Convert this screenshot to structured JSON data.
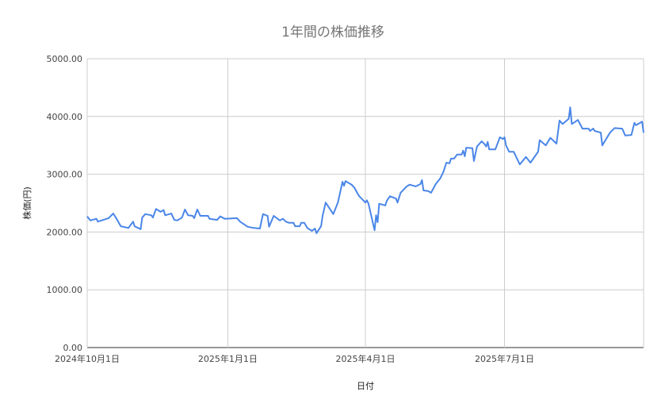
{
  "chart_data": {
    "type": "line",
    "title": "1年間の株価推移",
    "xlabel": "日付",
    "ylabel": "株価(円)",
    "xlim": [
      "2024-10-01",
      "2025-09-30"
    ],
    "ylim": [
      0,
      5000
    ],
    "y_ticks": [
      "0.00",
      "1000.00",
      "2000.00",
      "3000.00",
      "4000.00",
      "5000.00"
    ],
    "x_ticks": [
      {
        "date": "2024-10-01",
        "label": "2024年10月1日"
      },
      {
        "date": "2025-01-01",
        "label": "2025年1月1日"
      },
      {
        "date": "2025-04-01",
        "label": "2025年4月1日"
      },
      {
        "date": "2025-07-01",
        "label": "2025年7月1日"
      }
    ],
    "grid": true,
    "legend": "none",
    "line_color": "#4a86e8",
    "series": [
      {
        "points": [
          [
            "2024-10-01",
            2270
          ],
          [
            "2024-10-03",
            2200
          ],
          [
            "2024-10-07",
            2230
          ],
          [
            "2024-10-08",
            2180
          ],
          [
            "2024-10-15",
            2240
          ],
          [
            "2024-10-18",
            2320
          ],
          [
            "2024-10-20",
            2240
          ],
          [
            "2024-10-23",
            2100
          ],
          [
            "2024-10-28",
            2070
          ],
          [
            "2024-10-31",
            2180
          ],
          [
            "2024-11-01",
            2100
          ],
          [
            "2024-11-05",
            2050
          ],
          [
            "2024-11-06",
            2250
          ],
          [
            "2024-11-08",
            2310
          ],
          [
            "2024-11-12",
            2290
          ],
          [
            "2024-11-13",
            2250
          ],
          [
            "2024-11-15",
            2400
          ],
          [
            "2024-11-18",
            2350
          ],
          [
            "2024-11-20",
            2380
          ],
          [
            "2024-11-21",
            2290
          ],
          [
            "2024-11-25",
            2320
          ],
          [
            "2024-11-27",
            2210
          ],
          [
            "2024-11-29",
            2200
          ],
          [
            "2024-12-02",
            2250
          ],
          [
            "2024-12-04",
            2390
          ],
          [
            "2024-12-06",
            2290
          ],
          [
            "2024-12-09",
            2280
          ],
          [
            "2024-12-10",
            2240
          ],
          [
            "2024-12-12",
            2390
          ],
          [
            "2024-12-14",
            2280
          ],
          [
            "2024-12-19",
            2280
          ],
          [
            "2024-12-20",
            2230
          ],
          [
            "2024-12-25",
            2210
          ],
          [
            "2024-12-27",
            2270
          ],
          [
            "2024-12-30",
            2230
          ],
          [
            "2025-01-07",
            2240
          ],
          [
            "2025-01-09",
            2180
          ],
          [
            "2025-01-14",
            2090
          ],
          [
            "2025-01-18",
            2070
          ],
          [
            "2025-01-22",
            2060
          ],
          [
            "2025-01-24",
            2310
          ],
          [
            "2025-01-27",
            2280
          ],
          [
            "2025-01-28",
            2090
          ],
          [
            "2025-01-31",
            2280
          ],
          [
            "2025-02-04",
            2200
          ],
          [
            "2025-02-06",
            2230
          ],
          [
            "2025-02-08",
            2180
          ],
          [
            "2025-02-10",
            2160
          ],
          [
            "2025-02-13",
            2160
          ],
          [
            "2025-02-14",
            2100
          ],
          [
            "2025-02-17",
            2100
          ],
          [
            "2025-02-18",
            2160
          ],
          [
            "2025-02-20",
            2160
          ],
          [
            "2025-02-22",
            2070
          ],
          [
            "2025-02-25",
            2020
          ],
          [
            "2025-02-27",
            2060
          ],
          [
            "2025-02-28",
            1980
          ],
          [
            "2025-03-03",
            2100
          ],
          [
            "2025-03-04",
            2280
          ],
          [
            "2025-03-06",
            2510
          ],
          [
            "2025-03-11",
            2310
          ],
          [
            "2025-03-14",
            2510
          ],
          [
            "2025-03-17",
            2870
          ],
          [
            "2025-03-18",
            2800
          ],
          [
            "2025-03-19",
            2880
          ],
          [
            "2025-03-23",
            2820
          ],
          [
            "2025-03-25",
            2760
          ],
          [
            "2025-03-27",
            2660
          ],
          [
            "2025-03-28",
            2620
          ],
          [
            "2025-04-01",
            2510
          ],
          [
            "2025-04-02",
            2550
          ],
          [
            "2025-04-03",
            2490
          ],
          [
            "2025-04-07",
            2030
          ],
          [
            "2025-04-08",
            2290
          ],
          [
            "2025-04-09",
            2170
          ],
          [
            "2025-04-10",
            2490
          ],
          [
            "2025-04-14",
            2460
          ],
          [
            "2025-04-15",
            2540
          ],
          [
            "2025-04-17",
            2620
          ],
          [
            "2025-04-21",
            2580
          ],
          [
            "2025-04-22",
            2510
          ],
          [
            "2025-04-24",
            2680
          ],
          [
            "2025-04-28",
            2790
          ],
          [
            "2025-04-30",
            2820
          ],
          [
            "2025-05-04",
            2790
          ],
          [
            "2025-05-07",
            2830
          ],
          [
            "2025-05-08",
            2900
          ],
          [
            "2025-05-09",
            2720
          ],
          [
            "2025-05-12",
            2710
          ],
          [
            "2025-05-14",
            2680
          ],
          [
            "2025-05-17",
            2830
          ],
          [
            "2025-05-20",
            2930
          ],
          [
            "2025-05-22",
            3040
          ],
          [
            "2025-05-24",
            3200
          ],
          [
            "2025-05-26",
            3190
          ],
          [
            "2025-05-27",
            3270
          ],
          [
            "2025-05-29",
            3270
          ],
          [
            "2025-05-31",
            3340
          ],
          [
            "2025-06-03",
            3340
          ],
          [
            "2025-06-04",
            3410
          ],
          [
            "2025-06-05",
            3310
          ],
          [
            "2025-06-06",
            3460
          ],
          [
            "2025-06-10",
            3450
          ],
          [
            "2025-06-11",
            3230
          ],
          [
            "2025-06-13",
            3480
          ],
          [
            "2025-06-16",
            3570
          ],
          [
            "2025-06-18",
            3520
          ],
          [
            "2025-06-19",
            3480
          ],
          [
            "2025-06-20",
            3560
          ],
          [
            "2025-06-21",
            3430
          ],
          [
            "2025-06-25",
            3430
          ],
          [
            "2025-06-28",
            3640
          ],
          [
            "2025-06-30",
            3610
          ],
          [
            "2025-07-01",
            3640
          ],
          [
            "2025-07-02",
            3500
          ],
          [
            "2025-07-04",
            3390
          ],
          [
            "2025-07-07",
            3390
          ],
          [
            "2025-07-11",
            3170
          ],
          [
            "2025-07-15",
            3300
          ],
          [
            "2025-07-18",
            3200
          ],
          [
            "2025-07-23",
            3390
          ],
          [
            "2025-07-24",
            3590
          ],
          [
            "2025-07-28",
            3500
          ],
          [
            "2025-07-31",
            3630
          ],
          [
            "2025-08-04",
            3530
          ],
          [
            "2025-08-06",
            3930
          ],
          [
            "2025-08-08",
            3870
          ],
          [
            "2025-08-12",
            3960
          ],
          [
            "2025-08-13",
            4160
          ],
          [
            "2025-08-14",
            3870
          ],
          [
            "2025-08-18",
            3940
          ],
          [
            "2025-08-21",
            3790
          ],
          [
            "2025-08-25",
            3790
          ],
          [
            "2025-08-26",
            3750
          ],
          [
            "2025-08-28",
            3790
          ],
          [
            "2025-08-29",
            3750
          ],
          [
            "2025-09-02",
            3720
          ],
          [
            "2025-09-03",
            3500
          ],
          [
            "2025-09-08",
            3720
          ],
          [
            "2025-09-11",
            3800
          ],
          [
            "2025-09-16",
            3790
          ],
          [
            "2025-09-18",
            3670
          ],
          [
            "2025-09-22",
            3680
          ],
          [
            "2025-09-24",
            3890
          ],
          [
            "2025-09-25",
            3850
          ],
          [
            "2025-09-29",
            3910
          ],
          [
            "2025-09-30",
            3720
          ]
        ]
      }
    ]
  }
}
